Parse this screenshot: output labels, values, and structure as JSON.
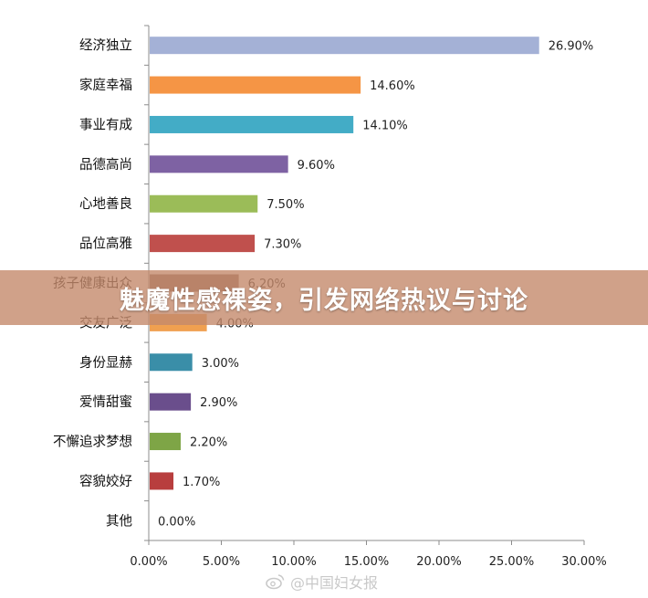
{
  "chart_data": {
    "type": "bar",
    "orientation": "horizontal",
    "categories": [
      "经济独立",
      "家庭幸福",
      "事业有成",
      "品德高尚",
      "心地善良",
      "品位高雅",
      "孩子健康出众",
      "交友广泛",
      "身份显赫",
      "爱情甜蜜",
      "不懈追求梦想",
      "容貌姣好",
      "其他"
    ],
    "values": [
      26.9,
      14.6,
      14.1,
      9.6,
      7.5,
      7.3,
      6.2,
      4.0,
      3.0,
      2.9,
      2.2,
      1.7,
      0.0
    ],
    "value_labels": [
      "26.90%",
      "14.60%",
      "14.10%",
      "9.60%",
      "7.50%",
      "7.30%",
      "6.20%",
      "4.00%",
      "3.00%",
      "2.90%",
      "2.20%",
      "1.70%",
      "0.00%"
    ],
    "colors": [
      "#a4b1d6",
      "#f59545",
      "#43acc6",
      "#7e62a3",
      "#9bbc58",
      "#c0504d",
      "#8b6960",
      "#f0a050",
      "#3a8ea8",
      "#6a4e8c",
      "#7ea546",
      "#b83e3e",
      "#888888"
    ],
    "xlim": [
      0,
      30
    ],
    "x_ticks": [
      0,
      5,
      10,
      15,
      20,
      25,
      30
    ],
    "x_tick_labels": [
      "0.00%",
      "5.00%",
      "10.00%",
      "15.00%",
      "20.00%",
      "25.00%",
      "30.00%"
    ],
    "grid": false
  },
  "banner": {
    "text": "魅魔性感裸姿，引发网络热议与讨论"
  },
  "watermark": {
    "text": "@中国妇女报",
    "icon": "weibo-icon"
  }
}
